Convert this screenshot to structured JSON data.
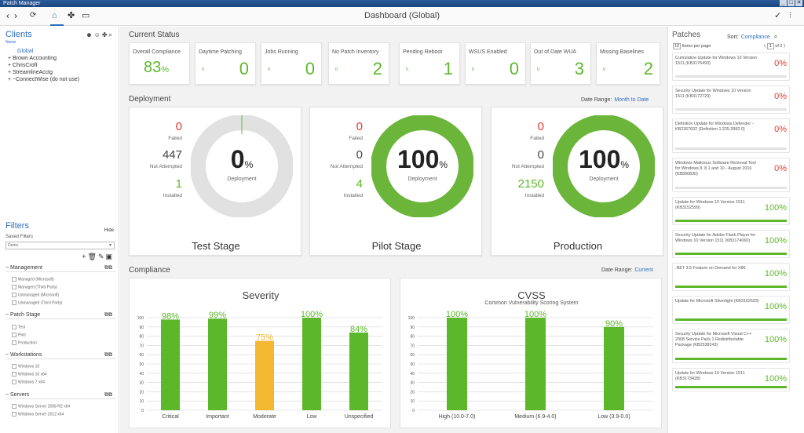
{
  "window": {
    "title": "Patch Manager",
    "min": "_",
    "max": "□",
    "close": "✕"
  },
  "toolbar": {
    "title": "Dashboard (Global)"
  },
  "sidebar": {
    "clients_title": "Clients",
    "clients_sub": "Name",
    "clients": [
      "Global",
      "+ Brown Accounting",
      "+ ChrisCroft",
      "+ StreamlineAcctg",
      "+ ~ConnectWise (do not use)"
    ],
    "filters_title": "Filters",
    "hide": "Hide",
    "saved_filters": "Saved Filters",
    "saved_value": "Demo",
    "sections": [
      {
        "name": "Management",
        "options": [
          "Managed (Microsoft)",
          "Managed (Third Party)",
          "Unmanaged (Microsoft)",
          "Unmanaged (Third Party)"
        ]
      },
      {
        "name": "Patch Stage",
        "options": [
          "Test",
          "Pilot",
          "Production"
        ]
      },
      {
        "name": "Workstations",
        "options": [
          "Windows 10",
          "Windows 10 x64",
          "Windows 7 x64"
        ]
      },
      {
        "name": "Servers",
        "options": [
          "Windows Server 2008 R2 x64",
          "Windows Server 2012 x64"
        ]
      }
    ]
  },
  "current_status": {
    "title": "Current Status",
    "cards": [
      {
        "label": "Overall Compliance",
        "value": "83",
        "unit": "%"
      },
      {
        "label": "Daytime Patching",
        "small": "0",
        "value": "0"
      },
      {
        "label": "Jobs Running",
        "small": "0",
        "value": "0"
      },
      {
        "label": "No Patch Inventory",
        "small": "0",
        "value": "2"
      },
      {
        "label": "Pending Reboot",
        "small": "0",
        "value": "1"
      },
      {
        "label": "WSUS Enabled",
        "small": "0",
        "value": "0"
      },
      {
        "label": "Out of Date WUA",
        "small": "0",
        "value": "3"
      },
      {
        "label": "Missing Baselines",
        "small": "0",
        "value": "2"
      }
    ]
  },
  "deployment": {
    "title": "Deployment",
    "date_range_label": "Date Range:",
    "date_range_value": "Month to Date",
    "failed_label": "Failed",
    "not_attempted_label": "Not Attempted",
    "installed_label": "Installed",
    "deployment_label": "Deployment",
    "pct_unit": "%",
    "stages": [
      {
        "name": "Test Stage",
        "failed": "0",
        "not_attempted": "447",
        "installed": "1",
        "pct": "0",
        "progress": 0
      },
      {
        "name": "Pilot Stage",
        "failed": "0",
        "not_attempted": "0",
        "installed": "4",
        "pct": "100",
        "progress": 1
      },
      {
        "name": "Production",
        "failed": "0",
        "not_attempted": "0",
        "installed": "2150",
        "pct": "100",
        "progress": 1
      }
    ]
  },
  "compliance": {
    "title": "Compliance",
    "date_range_label": "Date Range:",
    "date_range_value": "Current"
  },
  "chart_data": [
    {
      "type": "bar",
      "title": "Severity",
      "categories": [
        "Critical",
        "Important",
        "Moderate",
        "Low",
        "Unspecified"
      ],
      "values": [
        98,
        99,
        75,
        100,
        84
      ],
      "ylim": [
        0,
        100
      ],
      "yticks": [
        0,
        10,
        20,
        30,
        40,
        50,
        60,
        70,
        80,
        90,
        100
      ],
      "colors": [
        "#5cb82a",
        "#5cb82a",
        "#f4b731",
        "#5cb82a",
        "#5cb82a"
      ],
      "grid": true
    },
    {
      "type": "bar",
      "title": "CVSS",
      "subtitle": "Common Vulnerability Scoring System",
      "categories": [
        "High (10.0-7.0)",
        "Medium (6.9-4.0)",
        "Low (3.9-0.0)"
      ],
      "values": [
        100,
        100,
        90
      ],
      "ylim": [
        0,
        100
      ],
      "yticks": [
        0,
        10,
        20,
        30,
        40,
        50,
        60,
        70,
        80,
        90,
        100
      ],
      "colors": [
        "#5cb82a",
        "#5cb82a",
        "#5cb82a"
      ],
      "grid": true
    }
  ],
  "patches": {
    "title": "Patches",
    "sort_label": "Sort:",
    "sort_value": "Compliance",
    "per_page_value": "10",
    "per_page_label": "Items per page",
    "page_value": "1",
    "page_of": "of 2",
    "items": [
      {
        "title": "Cumulative Update for Windows 10 Version 1511 (KB3176493)",
        "pct": "0%",
        "progress": 0,
        "color": "#e03b2e"
      },
      {
        "title": "Security Update for Windows 10 Version 1511 (KB3172729)",
        "pct": "0%",
        "progress": 0,
        "color": "#e03b2e"
      },
      {
        "title": "Definition Update for Windows Defender - KB2267602 (Definition 1.225.3982.0)",
        "pct": "0%",
        "progress": 0,
        "color": "#e03b2e"
      },
      {
        "title": "Windows Malicious Software Removal Tool for Windows 8, 8.1 and 10 - August 2016 (KB890830)",
        "pct": "0%",
        "progress": 0,
        "color": "#e03b2e"
      },
      {
        "title": "Update for Windows 10 Version 1511 (KB3152599)",
        "pct": "100%",
        "progress": 1,
        "color": "#5cb82a"
      },
      {
        "title": "Security Update for Adobe Flash Player for Windows 10 Version 1511 (KB3174060)",
        "pct": "100%",
        "progress": 1,
        "color": "#5cb82a"
      },
      {
        "title": ".NET 3.5 Feature on Demand for X86",
        "pct": "100%",
        "progress": 1,
        "color": "#5cb82a"
      },
      {
        "title": "Update for Microsoft Silverlight (KB3162593)",
        "pct": "100%",
        "progress": 1,
        "color": "#5cb82a"
      },
      {
        "title": "Security Update for Microsoft Visual C++ 2008 Service Pack 1 Redistributable Package (KB2538243)",
        "pct": "100%",
        "progress": 1,
        "color": "#5cb82a"
      },
      {
        "title": "Update for Windows 10 Version 1511 (KB3173428)",
        "pct": "100%",
        "progress": 1,
        "color": "#5cb82a"
      }
    ]
  }
}
